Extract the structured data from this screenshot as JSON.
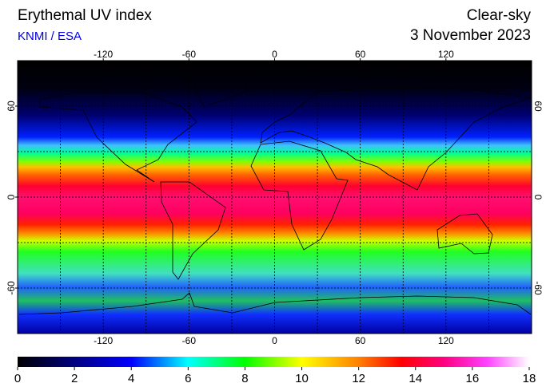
{
  "title": "Erythemal UV index",
  "source": "KNMI / ESA",
  "condition": "Clear-sky",
  "date": "3 November 2023",
  "map": {
    "lon_ticks": [
      -120,
      -60,
      0,
      60,
      120
    ],
    "lat_ticks": [
      60,
      0,
      -60
    ],
    "lonlim": [
      -180,
      180
    ],
    "latlim": [
      -90,
      90
    ],
    "grid_step": 30
  },
  "colorbar": {
    "lim": [
      0,
      18
    ],
    "ticks": [
      0,
      2,
      4,
      6,
      8,
      10,
      12,
      14,
      16,
      18
    ],
    "colorscale": [
      {
        "value": 0,
        "color": "#000000"
      },
      {
        "value": 2,
        "color": "#000080"
      },
      {
        "value": 4,
        "color": "#0000ff"
      },
      {
        "value": 6,
        "color": "#00ffff"
      },
      {
        "value": 8,
        "color": "#00ff00"
      },
      {
        "value": 10,
        "color": "#ffff00"
      },
      {
        "value": 12,
        "color": "#ff8000"
      },
      {
        "value": 13.5,
        "color": "#ff0000"
      },
      {
        "value": 15,
        "color": "#ff0080"
      },
      {
        "value": 16.5,
        "color": "#ff40ff"
      },
      {
        "value": 18,
        "color": "#ffffff"
      }
    ]
  }
}
